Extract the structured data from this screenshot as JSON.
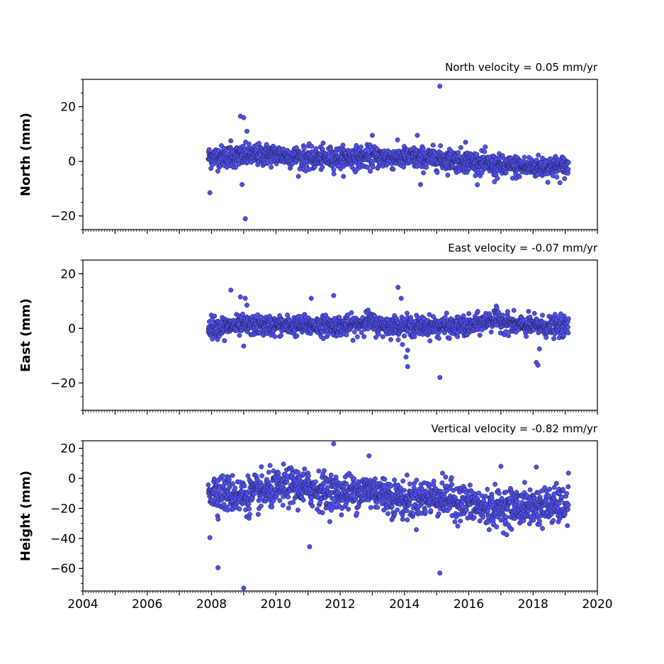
{
  "chart_data": [
    {
      "type": "scatter",
      "panel": "north",
      "title": "North velocity = 0.05 mm/yr",
      "xlabel": "",
      "ylabel": "North (mm)",
      "xlim": [
        2004,
        2020
      ],
      "ylim": [
        -25,
        30
      ],
      "yticks": [
        -20,
        0,
        20
      ],
      "series": [
        {
          "color": "#5050f0",
          "trend": [
            [
              2007.9,
              1.5
            ],
            [
              2010,
              2.5
            ],
            [
              2011,
              1.0
            ],
            [
              2013,
              1.5
            ],
            [
              2015,
              1.0
            ],
            [
              2016,
              0.0
            ],
            [
              2017,
              -2.0
            ],
            [
              2019.1,
              -2.0
            ]
          ],
          "spread": 2.0,
          "outliers": [
            [
              2007.95,
              -11.5
            ],
            [
              2008.9,
              16.5
            ],
            [
              2009.0,
              16.0
            ],
            [
              2009.1,
              11.0
            ],
            [
              2009.05,
              -21.0
            ],
            [
              2008.95,
              -8.5
            ],
            [
              2014.4,
              9.5
            ],
            [
              2015.1,
              27.5
            ],
            [
              2014.5,
              -8.5
            ],
            [
              2016.8,
              -7.5
            ],
            [
              2013.0,
              9.5
            ],
            [
              2008.6,
              7.5
            ],
            [
              2015.9,
              7.0
            ]
          ]
        }
      ]
    },
    {
      "type": "scatter",
      "panel": "east",
      "title": "East velocity = -0.07 mm/yr",
      "xlabel": "",
      "ylabel": "East (mm)",
      "xlim": [
        2004,
        2020
      ],
      "ylim": [
        -30,
        25
      ],
      "yticks": [
        -20,
        0,
        20
      ],
      "series": [
        {
          "color": "#5050f0",
          "trend": [
            [
              2007.9,
              0.5
            ],
            [
              2009,
              1.0
            ],
            [
              2012.5,
              1.0
            ],
            [
              2012.8,
              3.0
            ],
            [
              2013.2,
              1.0
            ],
            [
              2016,
              0.5
            ],
            [
              2016.8,
              3.5
            ],
            [
              2017.5,
              1.0
            ],
            [
              2019.1,
              0.5
            ]
          ],
          "spread": 1.8,
          "outliers": [
            [
              2008.6,
              14.0
            ],
            [
              2008.9,
              11.5
            ],
            [
              2009.05,
              11.0
            ],
            [
              2009.1,
              8.5
            ],
            [
              2011.8,
              12.0
            ],
            [
              2011.1,
              11.0
            ],
            [
              2013.8,
              15.0
            ],
            [
              2013.9,
              11.0
            ],
            [
              2014.1,
              -14.0
            ],
            [
              2014.05,
              -10.5
            ],
            [
              2014.1,
              -8.0
            ],
            [
              2015.1,
              -18.0
            ],
            [
              2018.1,
              -12.5
            ],
            [
              2018.15,
              -13.5
            ],
            [
              2018.2,
              -7.5
            ],
            [
              2009.0,
              -6.5
            ],
            [
              2008.4,
              -4.5
            ]
          ]
        }
      ]
    },
    {
      "type": "scatter",
      "panel": "height",
      "title": "Vertical velocity = -0.82 mm/yr",
      "xlabel": "",
      "ylabel": "Height (mm)",
      "xlim": [
        2004,
        2020
      ],
      "ylim": [
        -75,
        25
      ],
      "yticks": [
        -60,
        -40,
        -20,
        0,
        20
      ],
      "xticks": [
        2004,
        2006,
        2008,
        2010,
        2012,
        2014,
        2016,
        2018,
        2020
      ],
      "series": [
        {
          "color": "#5050f0",
          "trend": [
            [
              2007.9,
              -8
            ],
            [
              2009,
              -12
            ],
            [
              2010.5,
              -5
            ],
            [
              2012,
              -10
            ],
            [
              2013,
              -8
            ],
            [
              2014,
              -15
            ],
            [
              2015,
              -12
            ],
            [
              2016.5,
              -20
            ],
            [
              2019.1,
              -18
            ]
          ],
          "spread": 6.0,
          "outliers": [
            [
              2011.8,
              23.0
            ],
            [
              2012.9,
              15.0
            ],
            [
              2008.2,
              -59.5
            ],
            [
              2009.0,
              -73.0
            ],
            [
              2011.05,
              -45.5
            ],
            [
              2015.1,
              -63.0
            ],
            [
              2007.95,
              -39.5
            ],
            [
              2019.1,
              3.5
            ],
            [
              2017.0,
              8.0
            ],
            [
              2018.1,
              7.5
            ]
          ]
        }
      ]
    }
  ]
}
